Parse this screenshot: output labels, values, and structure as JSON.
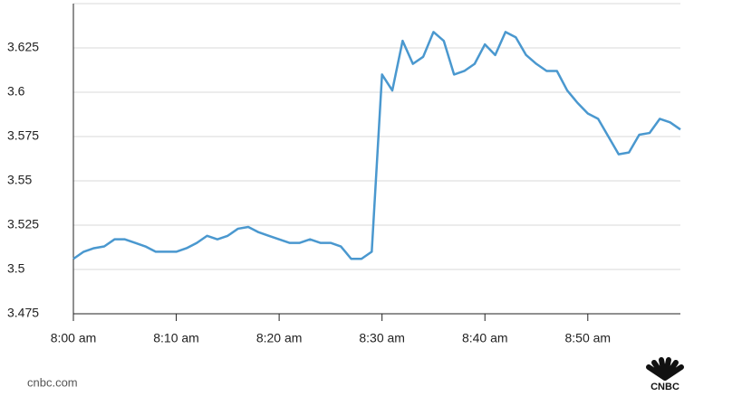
{
  "chart_data": {
    "type": "line",
    "x": [
      0,
      1,
      2,
      3,
      4,
      5,
      6,
      7,
      8,
      9,
      10,
      11,
      12,
      13,
      14,
      15,
      16,
      17,
      18,
      19,
      20,
      21,
      22,
      23,
      24,
      25,
      26,
      27,
      28,
      29,
      30,
      31,
      32,
      33,
      34,
      35,
      36,
      37,
      38,
      39,
      40,
      41,
      42,
      43,
      44,
      45,
      46,
      47,
      48,
      49,
      50,
      51,
      52,
      53,
      54,
      55,
      56,
      57,
      58,
      59
    ],
    "series": [
      {
        "color": "#4a98cf",
        "values": [
          3.506,
          3.51,
          3.512,
          3.513,
          3.517,
          3.517,
          3.515,
          3.513,
          3.51,
          3.51,
          3.51,
          3.512,
          3.515,
          3.519,
          3.517,
          3.519,
          3.523,
          3.524,
          3.521,
          3.519,
          3.517,
          3.515,
          3.515,
          3.517,
          3.515,
          3.515,
          3.513,
          3.506,
          3.506,
          3.51,
          3.61,
          3.601,
          3.629,
          3.616,
          3.62,
          3.634,
          3.629,
          3.61,
          3.612,
          3.616,
          3.627,
          3.621,
          3.634,
          3.631,
          3.621,
          3.616,
          3.612,
          3.612,
          3.601,
          3.594,
          3.588,
          3.585,
          3.575,
          3.565,
          3.566,
          3.576,
          3.577,
          3.585,
          3.583,
          3.579
        ]
      }
    ],
    "xlim": [
      0,
      59
    ],
    "xticks": [
      {
        "value": 0,
        "label": "8:00 am"
      },
      {
        "value": 10,
        "label": "8:10 am"
      },
      {
        "value": 20,
        "label": "8:20 am"
      },
      {
        "value": 30,
        "label": "8:30 am"
      },
      {
        "value": 40,
        "label": "8:40 am"
      },
      {
        "value": 50,
        "label": "8:50 am"
      }
    ],
    "ylim": [
      3.475,
      3.65
    ],
    "yticks": [
      3.475,
      3.5,
      3.525,
      3.55,
      3.575,
      3.6,
      3.625
    ],
    "grid": true
  },
  "footer": {
    "source": "cnbc.com",
    "logo": "CNBC"
  }
}
